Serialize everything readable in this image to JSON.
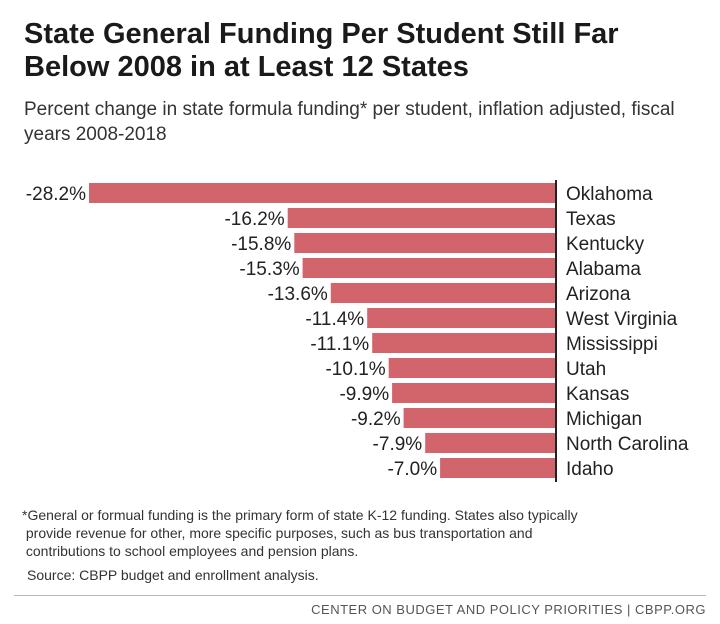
{
  "header": {
    "title": "State General Funding Per Student Still Far Below 2008 in at Least 12 States",
    "subtitle": "Percent change in state formula funding* per student, inflation adjusted, fiscal years 2008-2018"
  },
  "chart_data": {
    "type": "bar",
    "orientation": "horizontal",
    "categories": [
      "Oklahoma",
      "Texas",
      "Kentucky",
      "Alabama",
      "Arizona",
      "West Virginia",
      "Mississippi",
      "Utah",
      "Kansas",
      "Michigan",
      "North Carolina",
      "Idaho"
    ],
    "values": [
      -28.2,
      -16.2,
      -15.8,
      -15.3,
      -13.6,
      -11.4,
      -11.1,
      -10.1,
      -9.9,
      -9.2,
      -7.9,
      -7.0
    ],
    "value_labels": [
      "-28.2%",
      "-16.2%",
      "-15.8%",
      "-15.3%",
      "-13.6%",
      "-11.4%",
      "-11.1%",
      "-10.1%",
      "-9.9%",
      "-9.2%",
      "-7.9%",
      "-7.0%"
    ],
    "xlim": [
      -28.2,
      0
    ],
    "grid": false,
    "bar_color": "#d2646c"
  },
  "footer": {
    "footnote_line1": "*General or formual funding is the primary form of state K-12 funding. States also typically",
    "footnote_line2": "provide revenue for other, more specific purposes, such as bus transportation and",
    "footnote_line3": "contributions to school employees and pension plans.",
    "source": "Source: CBPP budget and enrollment analysis.",
    "credit": "CENTER ON BUDGET AND POLICY PRIORITIES | CBPP.ORG"
  }
}
